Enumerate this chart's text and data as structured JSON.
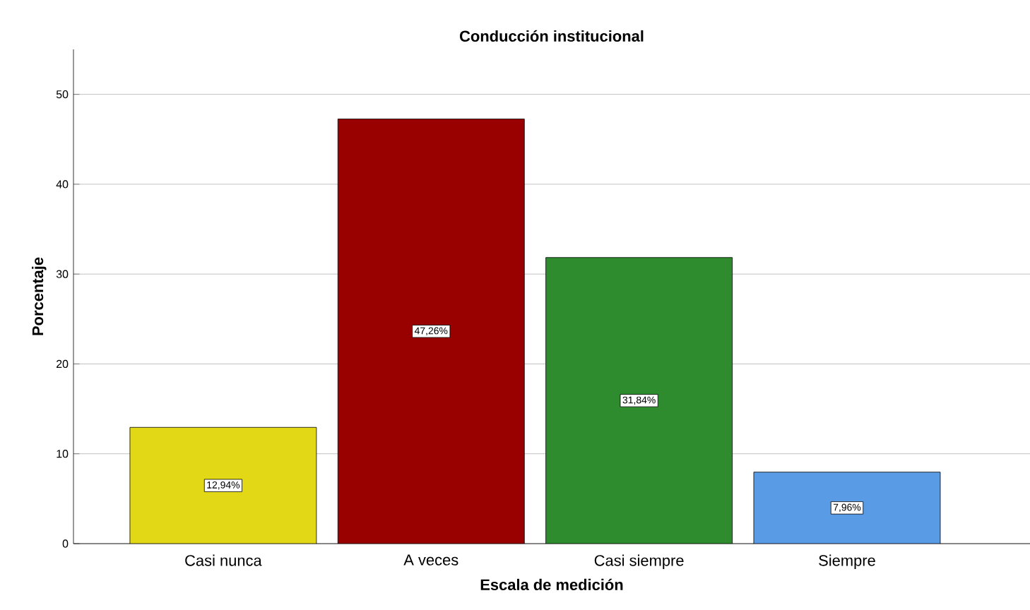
{
  "chart_data": {
    "type": "bar",
    "title": "Conducción institucional",
    "xlabel": "Escala de medición",
    "ylabel": "Porcentaje",
    "categories": [
      "Casi nunca",
      "A veces",
      "Casi siempre",
      "Siempre"
    ],
    "values": [
      12.94,
      47.26,
      31.84,
      7.96
    ],
    "value_labels": [
      "12,94%",
      "47,26%",
      "31,84%",
      "7,96%"
    ],
    "colors": [
      "#e3d816",
      "#990000",
      "#2e8b2e",
      "#5a9be6"
    ],
    "ylim": [
      0,
      55
    ],
    "yticks": [
      0,
      10,
      20,
      30,
      40,
      50
    ],
    "grid": "y"
  }
}
